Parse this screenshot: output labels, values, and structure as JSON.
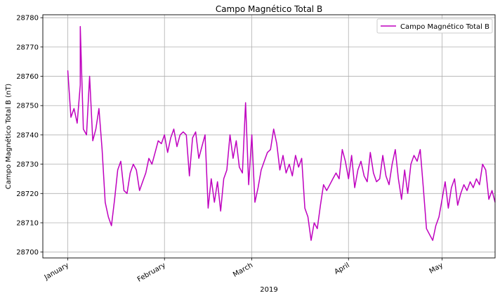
{
  "chart_data": {
    "type": "line",
    "title": "Campo Magnético Total B",
    "xlabel": "2019",
    "ylabel": "Campo Magnético Total B (nT)",
    "ylim": [
      28698,
      28781
    ],
    "xlim": [
      "2018-12-24",
      "2019-05-18"
    ],
    "grid": true,
    "legend_position": "top-right",
    "color": "#bf00bf",
    "x_ticks": [
      {
        "date": "2019-01-01",
        "label": "January"
      },
      {
        "date": "2019-02-01",
        "label": "February"
      },
      {
        "date": "2019-03-01",
        "label": "March"
      },
      {
        "date": "2019-04-01",
        "label": "April"
      },
      {
        "date": "2019-05-01",
        "label": "May"
      }
    ],
    "y_ticks": [
      28700,
      28710,
      28720,
      28730,
      28740,
      28750,
      28760,
      28770,
      28780
    ],
    "series": [
      {
        "name": "Campo Magnético Total B",
        "points": [
          [
            "2019-01-01",
            28762
          ],
          [
            "2019-01-02",
            28746
          ],
          [
            "2019-01-03",
            28749
          ],
          [
            "2019-01-04",
            28744
          ],
          [
            "2019-01-05",
            28757
          ],
          [
            "2019-01-05",
            28777
          ],
          [
            "2019-01-06",
            28742
          ],
          [
            "2019-01-07",
            28740
          ],
          [
            "2019-01-08",
            28760
          ],
          [
            "2019-01-09",
            28738
          ],
          [
            "2019-01-10",
            28742
          ],
          [
            "2019-01-11",
            28749
          ],
          [
            "2019-01-12",
            28735
          ],
          [
            "2019-01-13",
            28717
          ],
          [
            "2019-01-14",
            28712
          ],
          [
            "2019-01-15",
            28709
          ],
          [
            "2019-01-16",
            28718
          ],
          [
            "2019-01-17",
            28728
          ],
          [
            "2019-01-18",
            28731
          ],
          [
            "2019-01-19",
            28721
          ],
          [
            "2019-01-20",
            28720
          ],
          [
            "2019-01-21",
            28727
          ],
          [
            "2019-01-22",
            28730
          ],
          [
            "2019-01-23",
            28728
          ],
          [
            "2019-01-24",
            28721
          ],
          [
            "2019-01-25",
            28724
          ],
          [
            "2019-01-26",
            28727
          ],
          [
            "2019-01-27",
            28732
          ],
          [
            "2019-01-28",
            28730
          ],
          [
            "2019-01-29",
            28734
          ],
          [
            "2019-01-30",
            28738
          ],
          [
            "2019-01-31",
            28737
          ],
          [
            "2019-02-01",
            28740
          ],
          [
            "2019-02-02",
            28734
          ],
          [
            "2019-02-03",
            28739
          ],
          [
            "2019-02-04",
            28742
          ],
          [
            "2019-02-05",
            28736
          ],
          [
            "2019-02-06",
            28740
          ],
          [
            "2019-02-07",
            28741
          ],
          [
            "2019-02-08",
            28740
          ],
          [
            "2019-02-09",
            28726
          ],
          [
            "2019-02-10",
            28739
          ],
          [
            "2019-02-11",
            28741
          ],
          [
            "2019-02-12",
            28732
          ],
          [
            "2019-02-13",
            28736
          ],
          [
            "2019-02-14",
            28740
          ],
          [
            "2019-02-15",
            28715
          ],
          [
            "2019-02-16",
            28725
          ],
          [
            "2019-02-17",
            28717
          ],
          [
            "2019-02-18",
            28724
          ],
          [
            "2019-02-19",
            28714
          ],
          [
            "2019-02-20",
            28725
          ],
          [
            "2019-02-21",
            28728
          ],
          [
            "2019-02-22",
            28740
          ],
          [
            "2019-02-23",
            28732
          ],
          [
            "2019-02-24",
            28738
          ],
          [
            "2019-02-25",
            28729
          ],
          [
            "2019-02-26",
            28727
          ],
          [
            "2019-02-27",
            28751
          ],
          [
            "2019-02-28",
            28723
          ],
          [
            "2019-03-01",
            28740
          ],
          [
            "2019-03-02",
            28717
          ],
          [
            "2019-03-03",
            28722
          ],
          [
            "2019-03-04",
            28728
          ],
          [
            "2019-03-05",
            28731
          ],
          [
            "2019-03-06",
            28734
          ],
          [
            "2019-03-07",
            28735
          ],
          [
            "2019-03-08",
            28742
          ],
          [
            "2019-03-09",
            28737
          ],
          [
            "2019-03-10",
            28728
          ],
          [
            "2019-03-11",
            28733
          ],
          [
            "2019-03-12",
            28727
          ],
          [
            "2019-03-13",
            28730
          ],
          [
            "2019-03-14",
            28726
          ],
          [
            "2019-03-15",
            28733
          ],
          [
            "2019-03-16",
            28729
          ],
          [
            "2019-03-17",
            28732
          ],
          [
            "2019-03-18",
            28715
          ],
          [
            "2019-03-19",
            28712
          ],
          [
            "2019-03-20",
            28704
          ],
          [
            "2019-03-21",
            28710
          ],
          [
            "2019-03-22",
            28708
          ],
          [
            "2019-03-23",
            28716
          ],
          [
            "2019-03-24",
            28723
          ],
          [
            "2019-03-25",
            28721
          ],
          [
            "2019-03-26",
            28723
          ],
          [
            "2019-03-27",
            28725
          ],
          [
            "2019-03-28",
            28727
          ],
          [
            "2019-03-29",
            28725
          ],
          [
            "2019-03-30",
            28735
          ],
          [
            "2019-03-31",
            28731
          ],
          [
            "2019-04-01",
            28725
          ],
          [
            "2019-04-02",
            28733
          ],
          [
            "2019-04-03",
            28722
          ],
          [
            "2019-04-04",
            28728
          ],
          [
            "2019-04-05",
            28731
          ],
          [
            "2019-04-06",
            28726
          ],
          [
            "2019-04-07",
            28724
          ],
          [
            "2019-04-08",
            28734
          ],
          [
            "2019-04-09",
            28727
          ],
          [
            "2019-04-10",
            28724
          ],
          [
            "2019-04-11",
            28725
          ],
          [
            "2019-04-12",
            28733
          ],
          [
            "2019-04-13",
            28726
          ],
          [
            "2019-04-14",
            28723
          ],
          [
            "2019-04-15",
            28730
          ],
          [
            "2019-04-16",
            28735
          ],
          [
            "2019-04-17",
            28725
          ],
          [
            "2019-04-18",
            28718
          ],
          [
            "2019-04-19",
            28728
          ],
          [
            "2019-04-20",
            28720
          ],
          [
            "2019-04-21",
            28730
          ],
          [
            "2019-04-22",
            28733
          ],
          [
            "2019-04-23",
            28731
          ],
          [
            "2019-04-24",
            28735
          ],
          [
            "2019-04-25",
            28722
          ],
          [
            "2019-04-26",
            28708
          ],
          [
            "2019-04-27",
            28706
          ],
          [
            "2019-04-28",
            28704
          ],
          [
            "2019-04-29",
            28709
          ],
          [
            "2019-04-30",
            28712
          ],
          [
            "2019-05-01",
            28718
          ],
          [
            "2019-05-02",
            28724
          ],
          [
            "2019-05-03",
            28715
          ],
          [
            "2019-05-04",
            28722
          ],
          [
            "2019-05-05",
            28725
          ],
          [
            "2019-05-06",
            28716
          ],
          [
            "2019-05-07",
            28720
          ],
          [
            "2019-05-08",
            28723
          ],
          [
            "2019-05-09",
            28721
          ],
          [
            "2019-05-10",
            28724
          ],
          [
            "2019-05-11",
            28722
          ],
          [
            "2019-05-12",
            28725
          ],
          [
            "2019-05-13",
            28723
          ],
          [
            "2019-05-14",
            28730
          ],
          [
            "2019-05-15",
            28728
          ],
          [
            "2019-05-16",
            28718
          ],
          [
            "2019-05-17",
            28721
          ],
          [
            "2019-05-18",
            28717
          ]
        ]
      }
    ]
  }
}
